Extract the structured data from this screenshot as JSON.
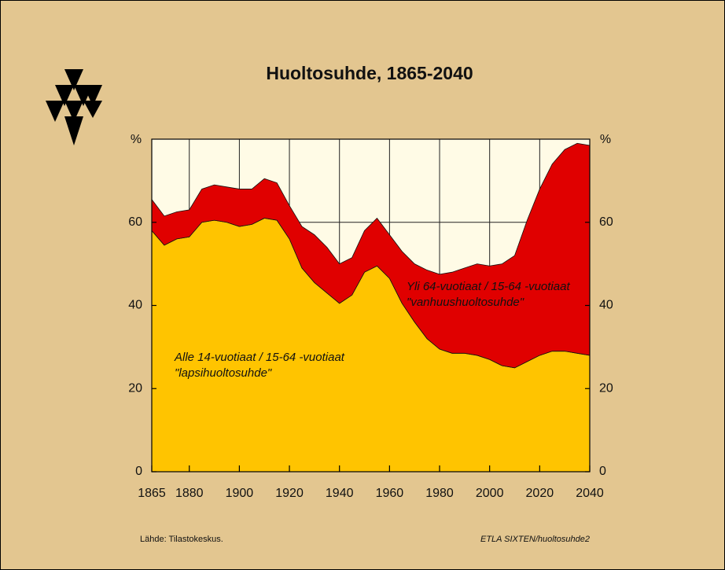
{
  "chart_data": {
    "type": "stacked_area",
    "title": "Huoltosuhde, 1865-2040",
    "y_label": "%",
    "x": [
      1865,
      1870,
      1875,
      1880,
      1885,
      1890,
      1895,
      1900,
      1905,
      1910,
      1915,
      1920,
      1925,
      1930,
      1935,
      1940,
      1945,
      1950,
      1955,
      1960,
      1965,
      1970,
      1975,
      1980,
      1985,
      1990,
      1995,
      2000,
      2005,
      2010,
      2015,
      2020,
      2025,
      2030,
      2035,
      2040
    ],
    "series": [
      {
        "name": "Alle 14-vuotiaat / 15-64 -vuotiaat \"lapsihuoltosuhde\"",
        "color": "#ffc400",
        "values": [
          58,
          54.5,
          56,
          56.5,
          60,
          60.5,
          60,
          59,
          59.5,
          61,
          60.5,
          56,
          49,
          45.5,
          43,
          40.5,
          42.5,
          48,
          49.5,
          46.5,
          40.5,
          36,
          32,
          29.5,
          28.5,
          28.5,
          28,
          27,
          25.5,
          25,
          26.5,
          28,
          29,
          29,
          28.5,
          28
        ]
      },
      {
        "name": "Yli 64-vuotiaat / 15-64 -vuotiaat \"vanhuushuoltosuhde\"",
        "color": "#e00000",
        "values": [
          7.5,
          7,
          6.5,
          6.5,
          8,
          8.5,
          8.5,
          9,
          8.5,
          9.5,
          9,
          8,
          10,
          11.5,
          11,
          9.5,
          9,
          10,
          11.5,
          10.5,
          12.5,
          14,
          16.5,
          18,
          19.5,
          20.5,
          22,
          22.5,
          24.5,
          27,
          34,
          40,
          45,
          48.5,
          50.5,
          50.5
        ]
      }
    ],
    "annotations": [
      "Alle 14-vuotiaat / 15-64 -vuotiaat",
      "\"lapsihuoltosuhde\"",
      "Yli 64-vuotiaat / 15-64 -vuotiaat",
      "\"vanhuushuoltosuhde\""
    ],
    "xlim": [
      1865,
      2040
    ],
    "xticks": [
      1865,
      1880,
      1900,
      1920,
      1940,
      1960,
      1980,
      2000,
      2020,
      2040
    ],
    "ylim": [
      0,
      80
    ],
    "yticks": [
      0,
      20,
      40,
      60
    ],
    "grid": true,
    "source": "Lähde:   Tilastokeskus.",
    "credit": "ETLA  SIXTEN/huoltosuhde2"
  }
}
